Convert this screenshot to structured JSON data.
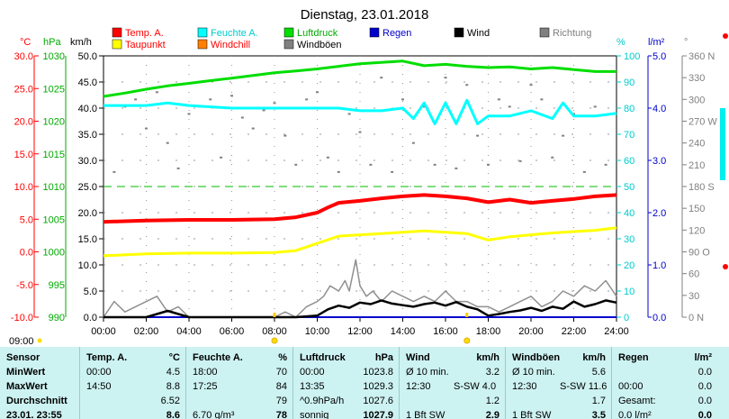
{
  "title": "Dienstag, 23.01.2018",
  "colors": {
    "temp": "#ff0000",
    "dew": "#ffff00",
    "humidity": "#00ffff",
    "windchill": "#ff8000",
    "pressure": "#00dd00",
    "gusts": "#909090",
    "rain": "#0000cc",
    "wind": "#000000",
    "direction": "#808080",
    "table_bg": "#cdf2f2"
  },
  "legend": [
    {
      "label": "Temp. A.",
      "color": "#ff0000",
      "text_color": "#ff0000"
    },
    {
      "label": "Taupunkt",
      "color": "#ffff00",
      "text_color": "#ff0000"
    },
    {
      "label": "Feuchte A.",
      "color": "#00ffff",
      "text_color": "#00cccc"
    },
    {
      "label": "Windchill",
      "color": "#ff8000",
      "text_color": "#ff0000"
    },
    {
      "label": "Luftdruck",
      "color": "#00dd00",
      "text_color": "#00aa00"
    },
    {
      "label": "Windböen",
      "color": "#808080",
      "text_color": "#000000"
    },
    {
      "label": "Regen",
      "color": "#0000cc",
      "text_color": "#0000cc"
    },
    {
      "label": "Wind",
      "color": "#000000",
      "text_color": "#000000"
    },
    {
      "label": "Richtung",
      "color": "#808080",
      "text_color": "#808080"
    }
  ],
  "axis_units": {
    "temp": "°C",
    "pressure": "hPa",
    "wind": "km/h",
    "humidity": "%",
    "rain": "l/m²",
    "direction": "°"
  },
  "chart_data": {
    "type": "line",
    "title": "Dienstag, 23.01.2018",
    "x_ticks": [
      "00:00",
      "02:00",
      "04:00",
      "06:00",
      "08:00",
      "10:00",
      "12:00",
      "14:00",
      "16:00",
      "18:00",
      "20:00",
      "22:00",
      "24:00"
    ],
    "x_range_hours": [
      0,
      24
    ],
    "y_axes": {
      "temp": {
        "unit": "°C",
        "ticks": [
          "30.0",
          "25.0",
          "20.0",
          "15.0",
          "10.0",
          "5.0",
          "0.0",
          "-5.0",
          "-10.0"
        ],
        "range": [
          -10,
          30
        ]
      },
      "pressure": {
        "unit": "hPa",
        "ticks": [
          "1030",
          "1025",
          "1020",
          "1015",
          "1010",
          "1005",
          "1000",
          "995",
          "990"
        ],
        "range": [
          990,
          1030
        ]
      },
      "wind": {
        "unit": "km/h",
        "ticks": [
          "50.0",
          "45.0",
          "40.0",
          "35.0",
          "30.0",
          "25.0",
          "20.0",
          "15.0",
          "10.0",
          "5.0",
          "0.0"
        ],
        "range": [
          0,
          50
        ]
      },
      "humidity": {
        "unit": "%",
        "ticks": [
          "100",
          "90",
          "80",
          "70",
          "60",
          "50",
          "40",
          "30",
          "20",
          "10",
          "0"
        ],
        "range": [
          0,
          100
        ]
      },
      "rain": {
        "unit": "l/m²",
        "ticks": [
          "5.0",
          "4.0",
          "3.0",
          "2.0",
          "1.0",
          "0.0"
        ],
        "range": [
          0,
          5
        ]
      },
      "direction": {
        "unit": "°",
        "ticks": [
          "360 N",
          "330",
          "300",
          "270 W",
          "240",
          "210",
          "180 S",
          "150",
          "120",
          "90 O",
          "60",
          "30",
          "0 N"
        ],
        "range": [
          0,
          360
        ]
      }
    },
    "series": [
      {
        "name": "Temp. A.",
        "key": "temp",
        "axis": "temp",
        "x": [
          0,
          2,
          4,
          6,
          8,
          9,
          10,
          10.5,
          11,
          12,
          13,
          14,
          15,
          16,
          17,
          18,
          19,
          20,
          21,
          22,
          23,
          24
        ],
        "values": [
          4.6,
          4.8,
          4.9,
          4.9,
          5.0,
          5.3,
          6.0,
          6.8,
          7.5,
          7.8,
          8.2,
          8.5,
          8.7,
          8.5,
          8.2,
          7.6,
          8.0,
          7.5,
          7.8,
          8.1,
          8.5,
          8.7
        ]
      },
      {
        "name": "Taupunkt",
        "key": "dew",
        "axis": "temp",
        "x": [
          0,
          2,
          4,
          6,
          8,
          9,
          10,
          11,
          12,
          13,
          14,
          15,
          16,
          17,
          18,
          19,
          20,
          21,
          22,
          23,
          24
        ],
        "values": [
          -0.6,
          -0.3,
          -0.2,
          -0.2,
          -0.1,
          0.2,
          1.3,
          2.4,
          2.6,
          2.8,
          3.0,
          3.2,
          3.0,
          2.8,
          1.8,
          2.3,
          2.6,
          2.9,
          3.1,
          3.3,
          3.7
        ]
      },
      {
        "name": "Feuchte A.",
        "key": "humidity",
        "axis": "humidity",
        "x": [
          0,
          2,
          3,
          4,
          6,
          8,
          9,
          10,
          11,
          12,
          13,
          14,
          14.5,
          15,
          15.5,
          16,
          16.5,
          17,
          17.5,
          18,
          19,
          20,
          21,
          21.5,
          22,
          23,
          24
        ],
        "values": [
          81,
          81,
          82,
          81,
          80,
          80,
          80,
          80,
          80,
          79,
          79,
          80,
          76,
          82,
          74,
          82,
          74,
          83,
          74,
          77,
          77,
          79,
          76,
          82,
          77,
          77,
          78
        ]
      },
      {
        "name": "Luftdruck",
        "key": "pressure",
        "axis": "pressure",
        "x": [
          0,
          1,
          2,
          3,
          4,
          5,
          6,
          7,
          8,
          9,
          10,
          11,
          12,
          13,
          14,
          15,
          16,
          17,
          18,
          19,
          20,
          21,
          22,
          23,
          24
        ],
        "values": [
          1023.8,
          1024.3,
          1024.9,
          1025.4,
          1025.8,
          1026.2,
          1026.6,
          1027.0,
          1027.4,
          1027.7,
          1028.0,
          1028.4,
          1028.8,
          1029.0,
          1029.2,
          1028.5,
          1028.7,
          1028.4,
          1028.2,
          1028.3,
          1028.0,
          1028.2,
          1027.9,
          1027.6,
          1027.6
        ]
      },
      {
        "name": "Windböen",
        "key": "gusts",
        "axis": "wind",
        "x": [
          0,
          0.5,
          1,
          1.5,
          2,
          2.5,
          3,
          3.5,
          4,
          5,
          6,
          7,
          8,
          8.5,
          9,
          9.5,
          10,
          10.3,
          10.6,
          11,
          11.3,
          11.5,
          11.8,
          12,
          12.3,
          12.6,
          13,
          13.5,
          14,
          14.5,
          15,
          15.5,
          16,
          16.5,
          17,
          17.5,
          18,
          18.5,
          19,
          19.5,
          20,
          20.5,
          21,
          21.5,
          22,
          22.5,
          23,
          23.5,
          24
        ],
        "values": [
          0,
          3,
          1,
          2,
          3,
          4,
          1,
          2,
          0,
          0,
          0,
          0,
          0,
          1,
          0,
          2,
          3,
          4,
          6,
          5,
          7,
          5,
          11,
          6,
          4,
          5,
          3,
          5,
          4,
          3,
          4,
          3,
          5,
          3,
          3,
          2,
          2,
          1,
          2,
          3,
          4,
          2,
          3,
          5,
          4,
          6,
          5,
          7,
          4
        ]
      },
      {
        "name": "Wind",
        "key": "wind",
        "axis": "wind",
        "x": [
          0,
          1,
          2,
          3,
          4,
          5,
          6,
          7,
          8,
          9,
          10,
          10.5,
          11,
          11.5,
          12,
          12.5,
          13,
          13.5,
          14,
          14.5,
          15,
          15.5,
          16,
          16.5,
          17,
          17.5,
          18,
          18.5,
          19,
          19.5,
          20,
          20.5,
          21,
          21.5,
          22,
          22.5,
          23,
          23.5,
          24
        ],
        "values": [
          0,
          0,
          0,
          1.2,
          0,
          0,
          0,
          0,
          0,
          0,
          0.3,
          1.5,
          2.2,
          1.8,
          2.8,
          2.5,
          3.2,
          2.6,
          2.3,
          2.0,
          2.5,
          2.8,
          2.2,
          2.9,
          2.0,
          1.5,
          0.3,
          0.6,
          1.0,
          1.3,
          1.8,
          1.2,
          2.0,
          1.6,
          3.0,
          2.0,
          2.5,
          3.2,
          2.8
        ]
      },
      {
        "name": "Regen",
        "key": "rain",
        "axis": "rain",
        "x": [
          0,
          24
        ],
        "values": [
          0,
          0
        ]
      },
      {
        "name": "Richtung",
        "key": "direction",
        "axis": "direction",
        "x": [
          0.5,
          1,
          1.5,
          2,
          2.5,
          3,
          3.5,
          4,
          4.5,
          5,
          5.5,
          6,
          6.5,
          7,
          7.5,
          8,
          8.5,
          9,
          9.5,
          10,
          10.5,
          11,
          11.5,
          12,
          12.5,
          13,
          13.5,
          14,
          14.5,
          15,
          15.5,
          16,
          16.5,
          17,
          17.5,
          18,
          18.5,
          19,
          19.5,
          20,
          20.5,
          21,
          21.5,
          22,
          22.5,
          23,
          23.5
        ],
        "values": [
          200,
          290,
          300,
          260,
          310,
          240,
          205,
          280,
          290,
          300,
          220,
          305,
          275,
          260,
          285,
          295,
          250,
          210,
          300,
          310,
          220,
          200,
          280,
          255,
          210,
          330,
          200,
          300,
          240,
          290,
          210,
          330,
          205,
          320,
          250,
          210,
          300,
          290,
          215,
          320,
          300,
          220,
          250,
          280,
          200,
          290,
          210
        ]
      }
    ],
    "reference_line": {
      "axis": "temp",
      "value": 10.0,
      "color": "#00bb00"
    },
    "sunrise": "08:00",
    "sunset": "17:00",
    "day_label_left": "09:00"
  },
  "table": {
    "columns": [
      {
        "name": "sensor",
        "header": "Sensor",
        "unit": "",
        "rows": [
          "MinWert",
          "MaxWert",
          "Durchschnitt",
          "23.01. 23:55"
        ]
      },
      {
        "name": "temp",
        "header": "Temp. A.",
        "unit": "°C",
        "rows": [
          [
            "00:00",
            "4.5"
          ],
          [
            "14:50",
            "8.8"
          ],
          [
            "",
            "6.52"
          ],
          [
            "",
            "8.6"
          ]
        ]
      },
      {
        "name": "humidity",
        "header": "Feuchte A.",
        "unit": "%",
        "rows": [
          [
            "18:00",
            "70"
          ],
          [
            "17:25",
            "84"
          ],
          [
            "",
            "79"
          ],
          [
            "6.70 g/m³",
            "78"
          ]
        ]
      },
      {
        "name": "pressure",
        "header": "Luftdruck",
        "unit": "hPa",
        "rows": [
          [
            "00:00",
            "1023.8"
          ],
          [
            "13:35",
            "1029.3"
          ],
          [
            "^0.9hPa/h",
            "1027.6"
          ],
          [
            "sonnig",
            "1027.9"
          ]
        ]
      },
      {
        "name": "wind",
        "header": "Wind",
        "unit": "km/h",
        "rows": [
          [
            "Ø 10 min.",
            "",
            "3.2"
          ],
          [
            "12:30",
            "S-SW 4.0",
            ""
          ],
          [
            "",
            "",
            "1.2"
          ],
          [
            "1 Bft SW",
            "",
            "2.9"
          ]
        ]
      },
      {
        "name": "gusts",
        "header": "Windböen",
        "unit": "km/h",
        "rows": [
          [
            "Ø 10 min.",
            "",
            "5.6"
          ],
          [
            "12:30",
            "S-SW 11.6",
            ""
          ],
          [
            "",
            "",
            "1.7"
          ],
          [
            "1 Bft SW",
            "",
            "3.5"
          ]
        ]
      },
      {
        "name": "rain",
        "header": "Regen",
        "unit": "l/m²",
        "rows": [
          [
            "",
            "0.0"
          ],
          [
            "00:00",
            "0.0"
          ],
          [
            "Gesamt:",
            "0.0"
          ],
          [
            "0.0 l/m²",
            "0.0"
          ]
        ]
      }
    ]
  }
}
